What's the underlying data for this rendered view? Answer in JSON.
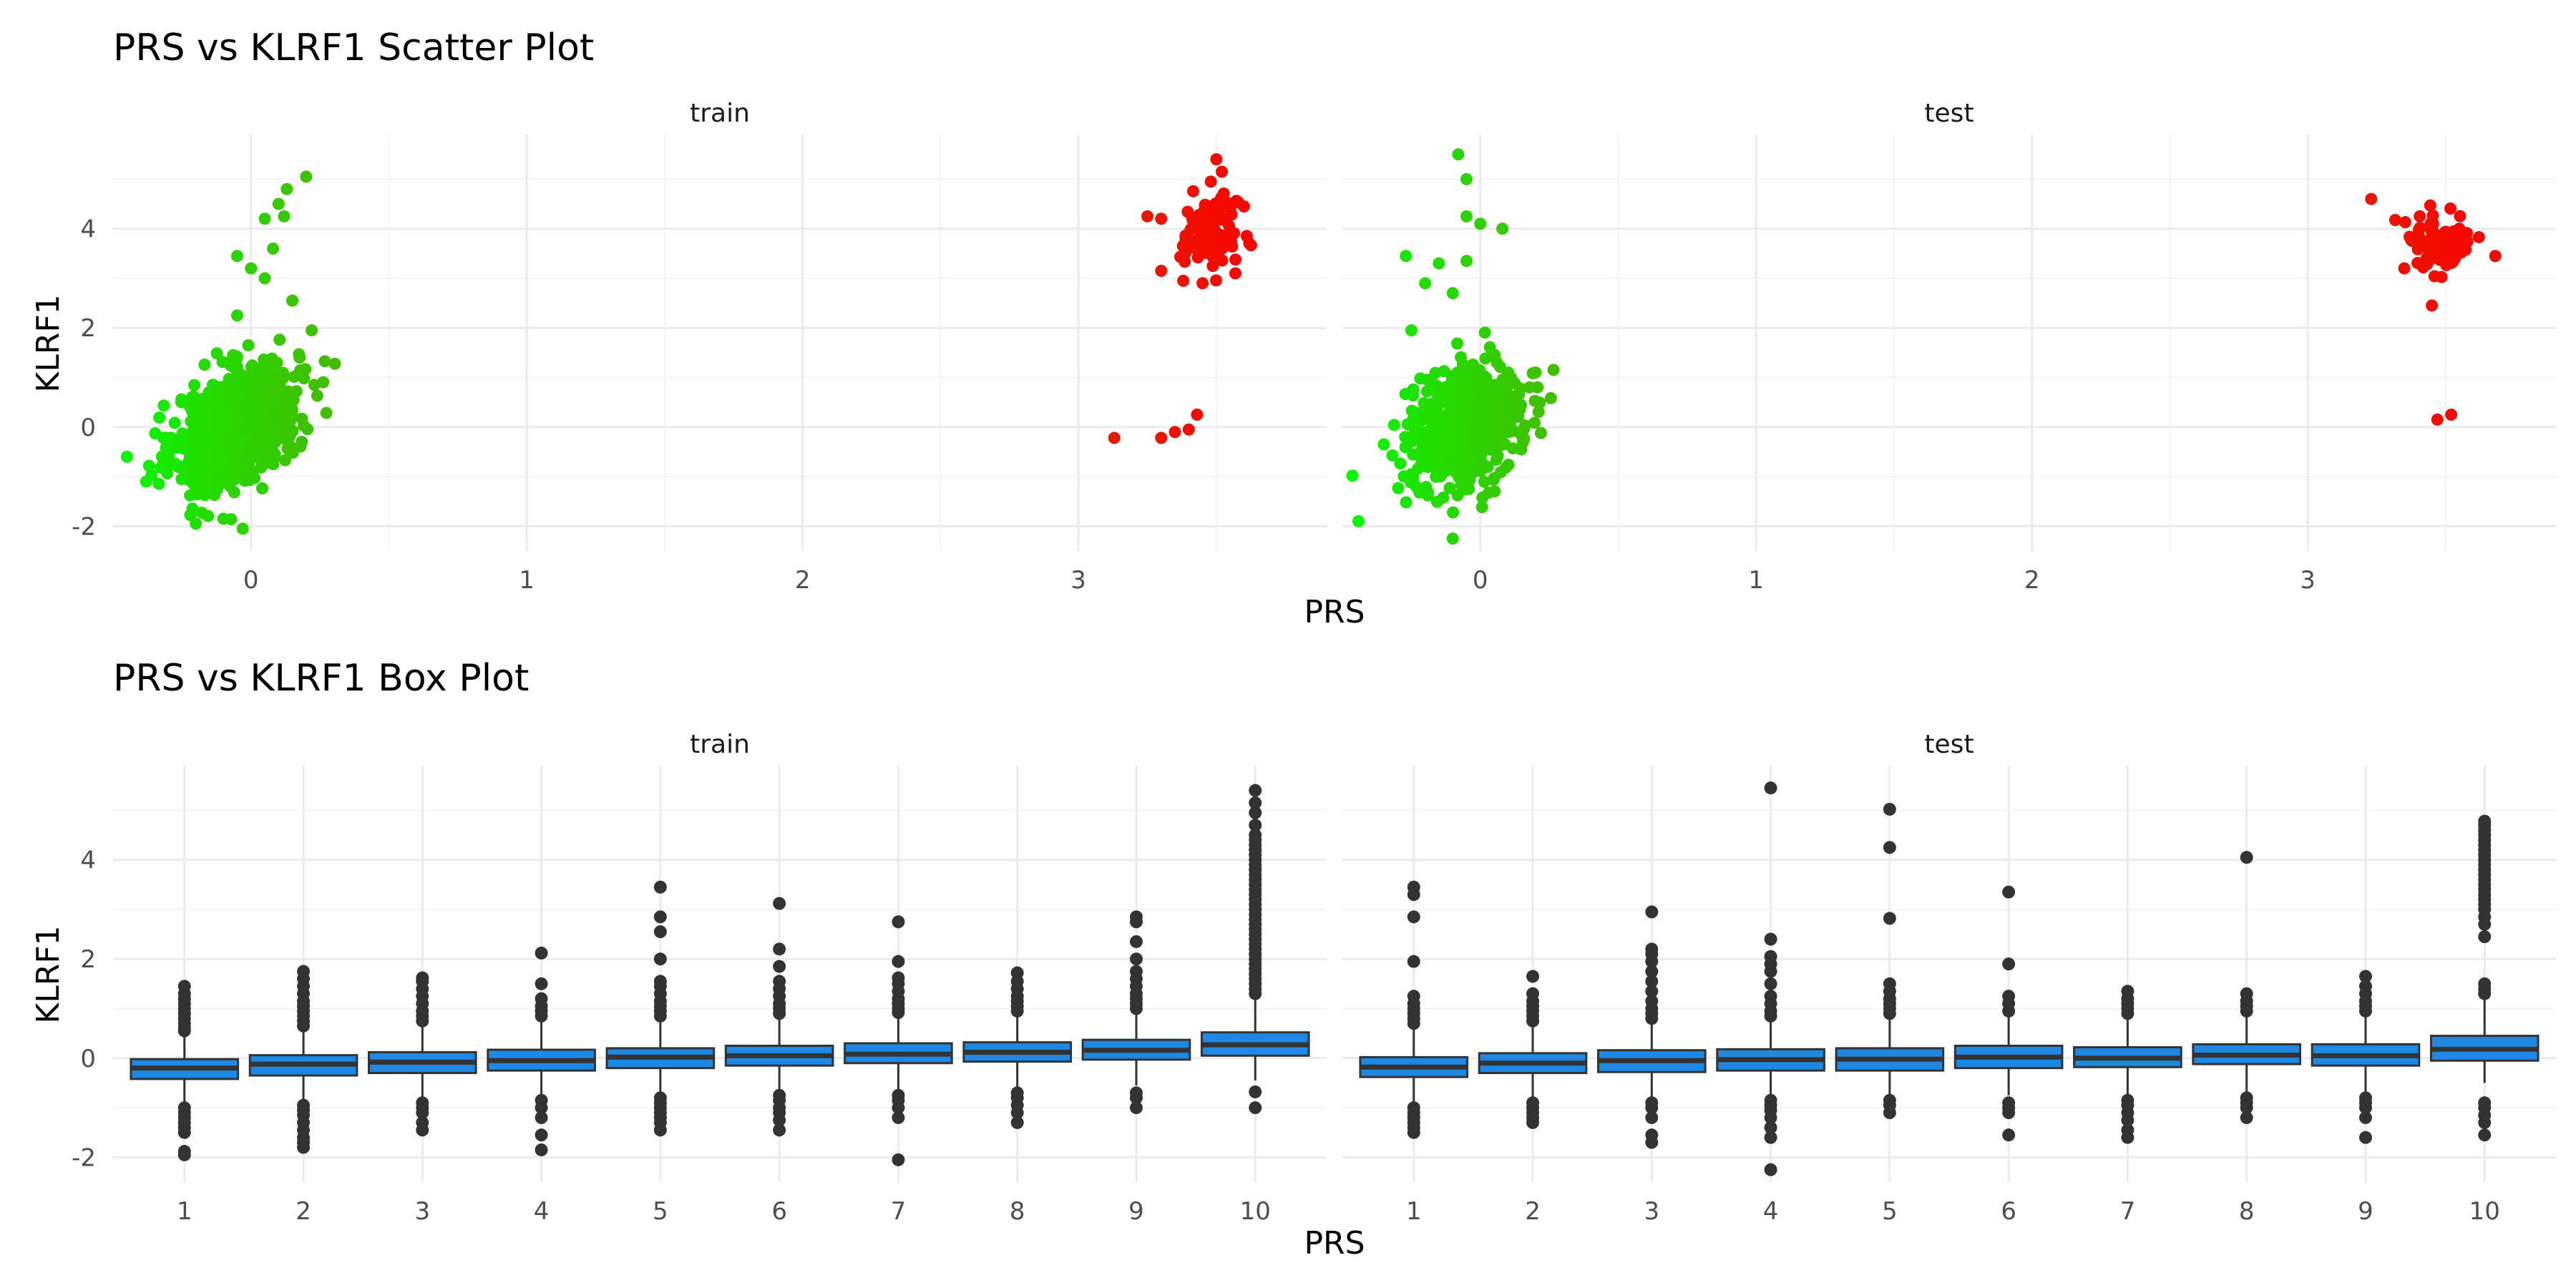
{
  "figure": {
    "colors": {
      "low": "#00ff00",
      "high": "#ff0000",
      "box_fill": "#1e88e5",
      "box_line": "#333333",
      "outlier": "#333333"
    }
  },
  "chart_data": [
    {
      "type": "scatter",
      "title": "PRS vs KLRF1 Scatter Plot",
      "xlabel": "PRS",
      "ylabel": "KLRF1",
      "xlim": [
        -0.5,
        3.9
      ],
      "ylim": [
        -2.5,
        5.9
      ],
      "x_ticks": [
        "0",
        "1",
        "2",
        "3"
      ],
      "y_ticks": [
        "-2",
        "0",
        "2",
        "4"
      ],
      "color_encoding": "PRS, green (low) to red (high)",
      "facets": [
        {
          "label": "train",
          "low_cluster": {
            "x_center": -0.05,
            "x_spread": 0.11,
            "y_center": 0.0,
            "y_spread": 0.55,
            "slope": 2.4,
            "n": 900
          },
          "high_cluster": {
            "x_center": 3.48,
            "x_spread": 0.05,
            "y_center": 3.9,
            "y_spread": 0.35,
            "n": 110
          },
          "points": [
            {
              "x": 0.2,
              "y": 5.05
            },
            {
              "x": 0.13,
              "y": 4.8
            },
            {
              "x": 0.1,
              "y": 4.5
            },
            {
              "x": 0.05,
              "y": 4.2
            },
            {
              "x": 0.12,
              "y": 4.25
            },
            {
              "x": 0.08,
              "y": 3.6
            },
            {
              "x": -0.05,
              "y": 3.45
            },
            {
              "x": 0.0,
              "y": 3.2
            },
            {
              "x": 0.05,
              "y": 3.0
            },
            {
              "x": 0.15,
              "y": 2.55
            },
            {
              "x": 0.22,
              "y": 1.95
            },
            {
              "x": -0.05,
              "y": 2.25
            },
            {
              "x": -0.2,
              "y": -1.95
            },
            {
              "x": -0.03,
              "y": -2.05
            },
            {
              "x": -0.1,
              "y": -1.85
            },
            {
              "x": -0.38,
              "y": -1.1
            },
            {
              "x": -0.45,
              "y": -0.6
            },
            {
              "x": 3.13,
              "y": -0.22
            },
            {
              "x": 3.3,
              "y": -0.22
            },
            {
              "x": 3.35,
              "y": -0.1
            },
            {
              "x": 3.4,
              "y": -0.05
            },
            {
              "x": 3.43,
              "y": 0.25
            },
            {
              "x": 3.5,
              "y": 5.4
            },
            {
              "x": 3.52,
              "y": 5.15
            },
            {
              "x": 3.48,
              "y": 4.95
            },
            {
              "x": 3.6,
              "y": 4.45
            },
            {
              "x": 3.55,
              "y": 4.4
            },
            {
              "x": 3.25,
              "y": 4.25
            },
            {
              "x": 3.3,
              "y": 4.2
            },
            {
              "x": 3.38,
              "y": 2.95
            },
            {
              "x": 3.45,
              "y": 2.9
            },
            {
              "x": 3.3,
              "y": 3.15
            }
          ]
        },
        {
          "label": "test",
          "low_cluster": {
            "x_center": -0.05,
            "x_spread": 0.1,
            "y_center": 0.0,
            "y_spread": 0.55,
            "slope": 1.2,
            "n": 650
          },
          "high_cluster": {
            "x_center": 3.48,
            "x_spread": 0.06,
            "y_center": 3.7,
            "y_spread": 0.3,
            "n": 100
          },
          "points": [
            {
              "x": -0.08,
              "y": 5.5
            },
            {
              "x": -0.05,
              "y": 5.0
            },
            {
              "x": -0.05,
              "y": 4.25
            },
            {
              "x": 0.0,
              "y": 4.1
            },
            {
              "x": 0.08,
              "y": 4.0
            },
            {
              "x": -0.27,
              "y": 3.45
            },
            {
              "x": -0.15,
              "y": 3.3
            },
            {
              "x": -0.05,
              "y": 3.35
            },
            {
              "x": -0.2,
              "y": 2.9
            },
            {
              "x": -0.1,
              "y": 2.7
            },
            {
              "x": -0.25,
              "y": 1.95
            },
            {
              "x": 0.2,
              "y": 1.1
            },
            {
              "x": -0.1,
              "y": -2.25
            },
            {
              "x": -0.35,
              "y": -0.35
            },
            {
              "x": 3.23,
              "y": 4.6
            },
            {
              "x": 3.68,
              "y": 3.45
            },
            {
              "x": 3.45,
              "y": 2.45
            },
            {
              "x": 3.35,
              "y": 3.2
            },
            {
              "x": 3.47,
              "y": 0.15
            },
            {
              "x": 3.52,
              "y": 0.25
            }
          ]
        }
      ]
    },
    {
      "type": "box",
      "title": "PRS vs KLRF1 Box Plot",
      "xlabel": "PRS",
      "ylabel": "KLRF1",
      "categories": [
        "1",
        "2",
        "3",
        "4",
        "5",
        "6",
        "7",
        "8",
        "9",
        "10"
      ],
      "ylim": [
        -2.5,
        5.9
      ],
      "y_ticks": [
        "-2",
        "0",
        "2",
        "4"
      ],
      "facets": [
        {
          "label": "train",
          "boxes": [
            {
              "q1": -0.42,
              "median": -0.2,
              "q3": -0.02,
              "whisker_low": -0.95,
              "whisker_high": 0.5,
              "outliers": [
                -1.0,
                -1.1,
                -1.2,
                -1.3,
                -1.4,
                -1.5,
                -1.88,
                -1.95,
                0.55,
                0.6,
                0.7,
                0.8,
                0.9,
                1.0,
                1.1,
                1.2,
                1.3,
                1.45
              ]
            },
            {
              "q1": -0.35,
              "median": -0.12,
              "q3": 0.06,
              "whisker_low": -0.9,
              "whisker_high": 0.6,
              "outliers": [
                -0.95,
                -1.05,
                -1.15,
                -1.3,
                -1.45,
                -1.6,
                -1.7,
                -1.8,
                0.65,
                0.75,
                0.85,
                0.95,
                1.05,
                1.15,
                1.3,
                1.45,
                1.6,
                1.75
              ]
            },
            {
              "q1": -0.3,
              "median": -0.08,
              "q3": 0.12,
              "whisker_low": -0.85,
              "whisker_high": 0.7,
              "outliers": [
                -0.9,
                -1.0,
                -1.1,
                -1.3,
                -1.45,
                0.75,
                0.85,
                0.95,
                1.1,
                1.25,
                1.4,
                1.55,
                1.62
              ]
            },
            {
              "q1": -0.25,
              "median": -0.05,
              "q3": 0.17,
              "whisker_low": -0.8,
              "whisker_high": 0.78,
              "outliers": [
                -0.85,
                -1.0,
                -1.2,
                -1.55,
                -1.85,
                0.85,
                0.95,
                1.05,
                1.2,
                1.5,
                2.12
              ]
            },
            {
              "q1": -0.2,
              "median": 0.02,
              "q3": 0.2,
              "whisker_low": -0.75,
              "whisker_high": 0.8,
              "outliers": [
                -0.8,
                -0.9,
                -1.0,
                -1.1,
                -1.2,
                -1.3,
                -1.45,
                0.85,
                0.95,
                1.05,
                1.15,
                1.3,
                1.45,
                1.55,
                2.0,
                2.55,
                2.85,
                3.45
              ]
            },
            {
              "q1": -0.15,
              "median": 0.05,
              "q3": 0.25,
              "whisker_low": -0.7,
              "whisker_high": 0.85,
              "outliers": [
                -0.75,
                -0.85,
                -1.0,
                -1.1,
                -1.25,
                -1.45,
                0.9,
                1.0,
                1.1,
                1.25,
                1.4,
                1.55,
                1.85,
                2.2,
                3.12
              ]
            },
            {
              "q1": -0.1,
              "median": 0.08,
              "q3": 0.3,
              "whisker_low": -0.65,
              "whisker_high": 0.88,
              "outliers": [
                -0.75,
                -0.85,
                -1.0,
                -1.2,
                -2.05,
                0.92,
                1.0,
                1.1,
                1.2,
                1.35,
                1.5,
                1.62,
                1.95,
                2.75
              ]
            },
            {
              "q1": -0.07,
              "median": 0.12,
              "q3": 0.32,
              "whisker_low": -0.6,
              "whisker_high": 0.9,
              "outliers": [
                -0.7,
                -0.8,
                -0.95,
                -1.1,
                -1.3,
                0.95,
                1.05,
                1.15,
                1.25,
                1.4,
                1.55,
                1.72
              ]
            },
            {
              "q1": -0.03,
              "median": 0.16,
              "q3": 0.37,
              "whisker_low": -0.55,
              "whisker_high": 0.95,
              "outliers": [
                -0.7,
                -0.8,
                -1.0,
                1.0,
                1.1,
                1.2,
                1.3,
                1.45,
                1.6,
                1.75,
                2.0,
                2.35,
                2.75,
                2.85
              ]
            },
            {
              "q1": 0.05,
              "median": 0.27,
              "q3": 0.52,
              "whisker_low": -0.45,
              "whisker_high": 1.25,
              "outliers": [
                -0.68,
                -1.0,
                1.3,
                1.4,
                1.5,
                1.6,
                1.7,
                1.8,
                1.9,
                2.0,
                2.1,
                2.2,
                2.3,
                2.4,
                2.5,
                2.6,
                2.7,
                2.8,
                2.9,
                3.0,
                3.1,
                3.2,
                3.3,
                3.4,
                3.5,
                3.6,
                3.7,
                3.8,
                3.9,
                4.0,
                4.1,
                4.2,
                4.3,
                4.4,
                4.5,
                4.7,
                4.95,
                5.15,
                5.4
              ]
            }
          ]
        },
        {
          "label": "test",
          "boxes": [
            {
              "q1": -0.38,
              "median": -0.18,
              "q3": 0.02,
              "whisker_low": -0.95,
              "whisker_high": 0.6,
              "outliers": [
                -1.0,
                -1.1,
                -1.2,
                -1.3,
                -1.4,
                -1.5,
                0.7,
                0.8,
                0.9,
                1.0,
                1.1,
                1.25,
                1.95,
                2.85,
                3.3,
                3.45
              ]
            },
            {
              "q1": -0.3,
              "median": -0.1,
              "q3": 0.1,
              "whisker_low": -0.85,
              "whisker_high": 0.68,
              "outliers": [
                -0.9,
                -1.0,
                -1.1,
                -1.2,
                -1.3,
                0.75,
                0.85,
                0.95,
                1.05,
                1.15,
                1.3,
                1.65
              ]
            },
            {
              "q1": -0.28,
              "median": -0.05,
              "q3": 0.16,
              "whisker_low": -0.8,
              "whisker_high": 0.75,
              "outliers": [
                -0.9,
                -1.0,
                -1.2,
                -1.55,
                -1.7,
                0.8,
                0.9,
                1.0,
                1.15,
                1.35,
                1.55,
                1.75,
                1.95,
                2.1,
                2.2,
                2.95
              ]
            },
            {
              "q1": -0.25,
              "median": -0.03,
              "q3": 0.18,
              "whisker_low": -0.8,
              "whisker_high": 0.78,
              "outliers": [
                -0.85,
                -0.95,
                -1.05,
                -1.2,
                -1.4,
                -1.6,
                -2.25,
                0.85,
                0.95,
                1.1,
                1.25,
                1.5,
                1.75,
                1.9,
                2.05,
                2.4,
                5.45
              ]
            },
            {
              "q1": -0.25,
              "median": -0.02,
              "q3": 0.2,
              "whisker_low": -0.78,
              "whisker_high": 0.82,
              "outliers": [
                -0.85,
                -0.95,
                -1.1,
                0.9,
                1.0,
                1.1,
                1.2,
                1.35,
                1.5,
                2.82,
                4.25,
                5.02
              ]
            },
            {
              "q1": -0.2,
              "median": 0.02,
              "q3": 0.25,
              "whisker_low": -0.75,
              "whisker_high": 0.85,
              "outliers": [
                -0.9,
                -1.0,
                -1.1,
                -1.55,
                0.95,
                1.1,
                1.25,
                1.9,
                3.35
              ]
            },
            {
              "q1": -0.18,
              "median": 0.0,
              "q3": 0.22,
              "whisker_low": -0.75,
              "whisker_high": 0.82,
              "outliers": [
                -0.85,
                -0.95,
                -1.1,
                -1.25,
                -1.45,
                -1.6,
                0.9,
                1.0,
                1.1,
                1.2,
                1.35
              ]
            },
            {
              "q1": -0.12,
              "median": 0.06,
              "q3": 0.28,
              "whisker_low": -0.7,
              "whisker_high": 0.9,
              "outliers": [
                -0.8,
                -0.9,
                -1.0,
                -1.2,
                0.95,
                1.05,
                1.15,
                1.3,
                4.05
              ]
            },
            {
              "q1": -0.15,
              "median": 0.05,
              "q3": 0.28,
              "whisker_low": -0.72,
              "whisker_high": 0.9,
              "outliers": [
                -0.8,
                -0.9,
                -1.0,
                -1.2,
                -1.6,
                0.95,
                1.05,
                1.15,
                1.3,
                1.45,
                1.65
              ]
            },
            {
              "q1": -0.05,
              "median": 0.18,
              "q3": 0.45,
              "whisker_low": -0.5,
              "whisker_high": 1.25,
              "outliers": [
                -0.9,
                -1.0,
                -1.15,
                -1.3,
                -1.55,
                1.3,
                1.4,
                1.5,
                2.45,
                2.7,
                2.85,
                3.0,
                3.1,
                3.2,
                3.3,
                3.4,
                3.5,
                3.6,
                3.7,
                3.8,
                3.9,
                4.0,
                4.1,
                4.2,
                4.3,
                4.4,
                4.5,
                4.6,
                4.7,
                4.78
              ]
            }
          ]
        }
      ]
    }
  ]
}
